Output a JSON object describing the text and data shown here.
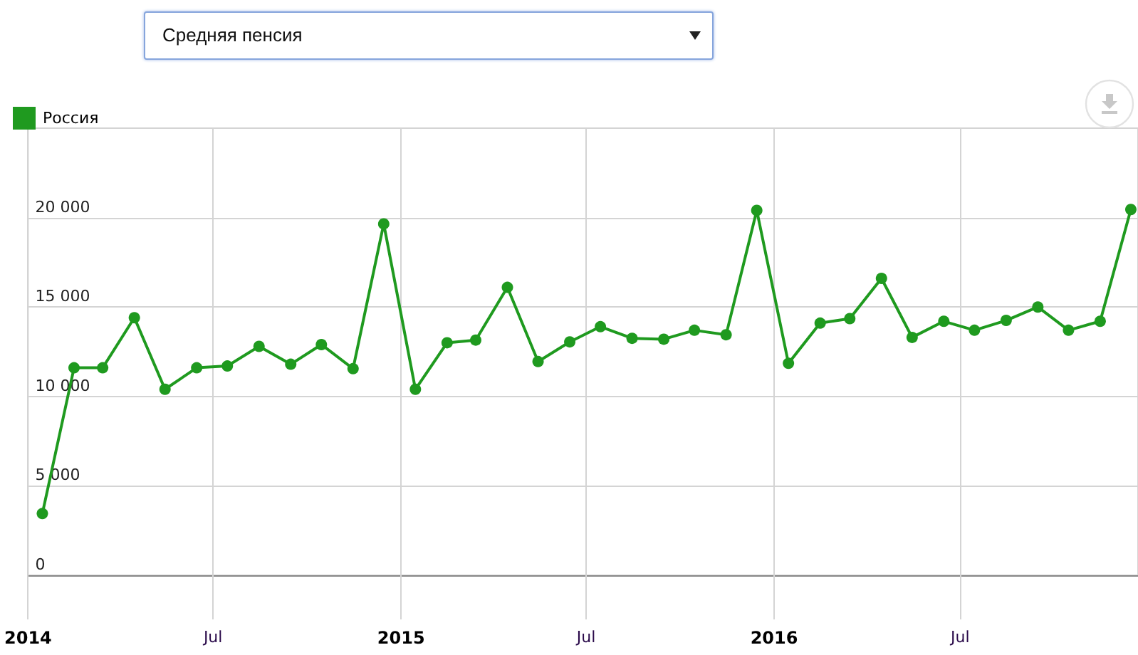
{
  "chart_data": {
    "type": "line",
    "title": "Средняя пенсия",
    "x": [
      "2014-01-15",
      "2014-02-15",
      "2014-03-15",
      "2014-04-15",
      "2014-05-15",
      "2014-06-15",
      "2014-07-15",
      "2014-08-15",
      "2014-09-15",
      "2014-10-15",
      "2014-11-15",
      "2014-12-15",
      "2015-01-15",
      "2015-02-15",
      "2015-03-15",
      "2015-04-15",
      "2015-05-15",
      "2015-06-15",
      "2015-07-15",
      "2015-08-15",
      "2015-09-15",
      "2015-10-15",
      "2015-11-15",
      "2015-12-15",
      "2016-01-15",
      "2016-02-15",
      "2016-03-15",
      "2016-04-15",
      "2016-05-15",
      "2016-06-15",
      "2016-07-15",
      "2016-08-15",
      "2016-09-15",
      "2016-10-15",
      "2016-11-15",
      "2016-12-15"
    ],
    "series": [
      {
        "name": "Россия",
        "color": "#1f9a1f",
        "values": [
          3450,
          11600,
          11600,
          14400,
          10400,
          11600,
          11700,
          12800,
          11800,
          12900,
          11550,
          19650,
          10400,
          13000,
          13150,
          16100,
          11950,
          13050,
          13900,
          13250,
          13200,
          13700,
          13450,
          20400,
          11850,
          14100,
          14350,
          16600,
          13300,
          14200,
          13700,
          14250,
          15000,
          13700,
          14200,
          20450
        ]
      }
    ],
    "xlim": [
      "2014-01-01",
      "2016-12-22"
    ],
    "xticks": [
      {
        "value": "2014-01-01",
        "label": "2014"
      },
      {
        "value": "2014-07-01",
        "label": "Jul"
      },
      {
        "value": "2015-01-01",
        "label": "2015"
      },
      {
        "value": "2015-07-01",
        "label": "Jul"
      },
      {
        "value": "2016-01-01",
        "label": "2016"
      },
      {
        "value": "2016-07-01",
        "label": "Jul"
      }
    ],
    "ylim": [
      0,
      25000
    ],
    "yticks": [
      0,
      {
        "value": 5000,
        "label": "5 000"
      },
      {
        "value": 10000,
        "label": "10 000"
      },
      {
        "value": 15000,
        "label": "15 000"
      },
      {
        "value": 20000,
        "label": "20 000"
      }
    ],
    "grid": true,
    "legend": "top left",
    "marker": "circle",
    "line_style": "solid"
  }
}
